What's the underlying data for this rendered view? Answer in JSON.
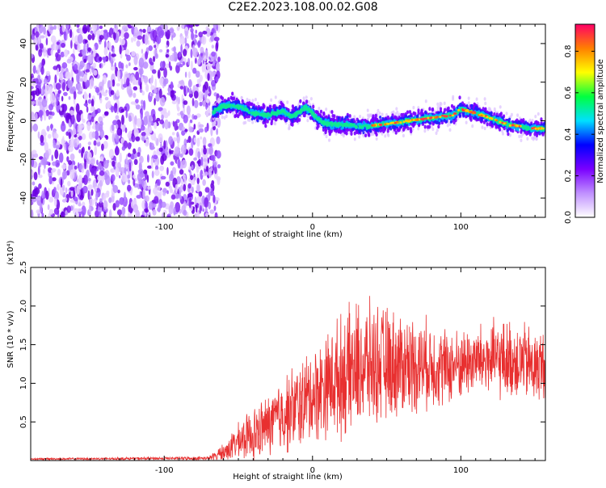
{
  "title": "C2E2.2023.108.00.02.G08",
  "chart_data": [
    {
      "type": "heatmap",
      "xlabel": "Height of straight line (km)",
      "ylabel": "Frequency (Hz)",
      "xlim": [
        -190,
        157
      ],
      "ylim": [
        -50,
        50
      ],
      "x_ticks": [
        -100,
        0,
        100
      ],
      "x_tick_labels": [
        "-100",
        "0",
        "100"
      ],
      "y_ticks": [
        -40,
        -20,
        0,
        20,
        40
      ],
      "y_tick_labels": [
        "-40",
        "-20",
        "0",
        "20",
        "40"
      ],
      "noise_region_end_km": -67,
      "center_line": {
        "x": [
          -68,
          -62,
          -55,
          -48,
          -40,
          -30,
          -20,
          -14,
          -8,
          -5,
          0,
          3,
          8,
          15,
          25,
          35,
          45,
          55,
          65,
          75,
          85,
          95,
          100,
          105,
          110,
          118,
          125,
          132,
          140,
          148,
          155
        ],
        "y": [
          4,
          7,
          8,
          7,
          4,
          3,
          5,
          2,
          5,
          7,
          4,
          1,
          -1,
          -2,
          -2,
          -3,
          -2,
          -1,
          0,
          1,
          2,
          3,
          6,
          5,
          4,
          2,
          0,
          -2,
          -3,
          -4,
          -4
        ]
      },
      "colorbar": {
        "label": "Normalized spectral amplitude",
        "ticks": [
          0.0,
          0.2,
          0.4,
          0.6,
          0.8
        ],
        "tick_labels": [
          "0.0",
          "0.2",
          "0.4",
          "0.6",
          "0.8"
        ],
        "range": [
          0,
          0.93
        ],
        "colors": [
          "#ffffff",
          "#c090ff",
          "#7a00ff",
          "#0000ff",
          "#00e0ff",
          "#00ff40",
          "#ffff00",
          "#ff8000",
          "#ff0066"
        ]
      },
      "grid": false
    },
    {
      "type": "line",
      "xlabel": "Height of straight line (km)",
      "ylabel": "SNR (10 * v/v)",
      "scale_label": "(x10⁴)",
      "xlim": [
        -190,
        157
      ],
      "ylim": [
        0,
        2.5
      ],
      "x_ticks": [
        -100,
        0,
        100
      ],
      "x_tick_labels": [
        "-100",
        "0",
        "100"
      ],
      "y_ticks": [
        0.5,
        1.0,
        1.5,
        2.0,
        2.5
      ],
      "y_tick_labels": [
        "0.5",
        "1.0",
        "1.5",
        "2.0",
        "2.5"
      ],
      "series": [
        {
          "color": "#e83030",
          "envelope_x": [
            -190,
            -70,
            -60,
            -50,
            -40,
            -30,
            -20,
            -10,
            0,
            10,
            20,
            30,
            40,
            50,
            60,
            70,
            80,
            90,
            100,
            110,
            120,
            130,
            140,
            150,
            157
          ],
          "envelope_mean": [
            0.02,
            0.03,
            0.1,
            0.25,
            0.35,
            0.45,
            0.6,
            0.7,
            0.85,
            1.0,
            1.1,
            1.2,
            1.25,
            1.25,
            1.25,
            1.25,
            1.25,
            1.2,
            1.25,
            1.3,
            1.3,
            1.3,
            1.3,
            1.2,
            1.25
          ],
          "envelope_spread": [
            0.01,
            0.02,
            0.1,
            0.2,
            0.3,
            0.35,
            0.45,
            0.5,
            0.55,
            0.6,
            0.7,
            0.75,
            0.7,
            0.65,
            0.6,
            0.55,
            0.5,
            0.45,
            0.4,
            0.4,
            0.45,
            0.45,
            0.45,
            0.45,
            0.4
          ]
        }
      ],
      "grid": false
    }
  ]
}
